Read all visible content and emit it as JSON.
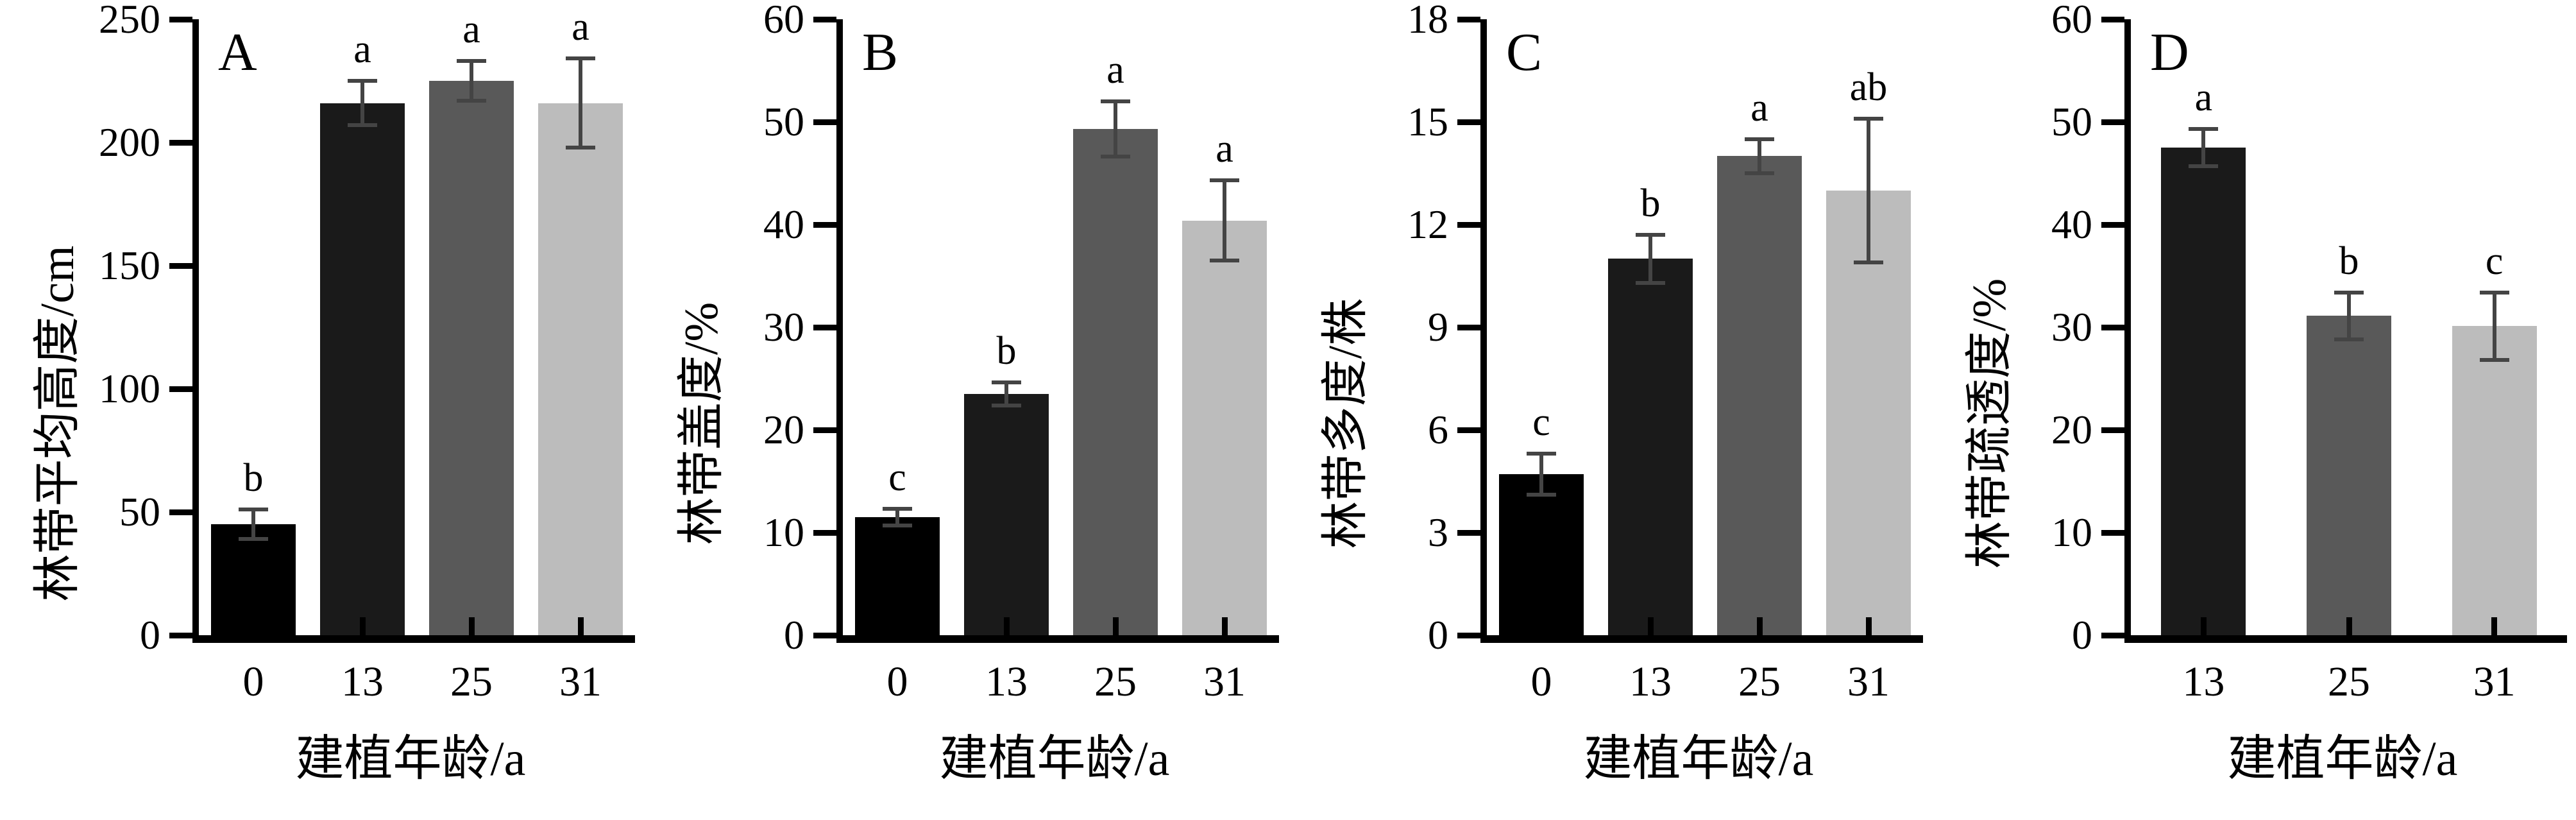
{
  "figure": {
    "background": "#ffffff",
    "axis_color": "#000000",
    "error_bar_color": "#444444"
  },
  "chart_data": [
    {
      "type": "bar",
      "panel_label": "A",
      "categories": [
        "0",
        "13",
        "25",
        "31"
      ],
      "values": [
        45,
        216,
        225,
        216
      ],
      "errors": [
        6,
        9,
        8,
        18
      ],
      "sig_letters": [
        "b",
        "a",
        "a",
        "a"
      ],
      "bar_colors": [
        "#000000",
        "#1a1a1a",
        "#595959",
        "#bcbcbc"
      ],
      "xlabel": "建植年龄/a",
      "ylabel": "林带平均高度/cm",
      "ylim": [
        0,
        250
      ],
      "yticks": [
        0,
        50,
        100,
        150,
        200,
        250
      ],
      "grid": false,
      "legend": "none"
    },
    {
      "type": "bar",
      "panel_label": "B",
      "categories": [
        "0",
        "13",
        "25",
        "31"
      ],
      "values": [
        11.5,
        23.5,
        49.3,
        40.4
      ],
      "errors": [
        0.8,
        1.1,
        2.7,
        3.9
      ],
      "sig_letters": [
        "c",
        "b",
        "a",
        "a"
      ],
      "bar_colors": [
        "#000000",
        "#1a1a1a",
        "#595959",
        "#bcbcbc"
      ],
      "xlabel": "建植年龄/a",
      "ylabel": "林带盖度/%",
      "ylim": [
        0,
        60
      ],
      "yticks": [
        0,
        10,
        20,
        30,
        40,
        50,
        60
      ],
      "grid": false,
      "legend": "none"
    },
    {
      "type": "bar",
      "panel_label": "C",
      "categories": [
        "0",
        "13",
        "25",
        "31"
      ],
      "values": [
        4.7,
        11,
        14,
        13
      ],
      "errors": [
        0.6,
        0.7,
        0.5,
        2.1
      ],
      "sig_letters": [
        "c",
        "b",
        "a",
        "ab"
      ],
      "bar_colors": [
        "#000000",
        "#1a1a1a",
        "#595959",
        "#bcbcbc"
      ],
      "xlabel": "建植年龄/a",
      "ylabel": "林带多度/株",
      "ylim": [
        0,
        18
      ],
      "yticks": [
        0,
        3,
        6,
        9,
        12,
        15,
        18
      ],
      "grid": false,
      "legend": "none"
    },
    {
      "type": "bar",
      "panel_label": "D",
      "categories": [
        "13",
        "25",
        "31"
      ],
      "values": [
        47.5,
        31.1,
        30.1
      ],
      "errors": [
        1.8,
        2.3,
        3.3
      ],
      "sig_letters": [
        "a",
        "b",
        "c"
      ],
      "bar_colors": [
        "#1a1a1a",
        "#595959",
        "#bcbcbc"
      ],
      "xlabel": "建植年龄/a",
      "ylabel": "林带疏透度/%",
      "ylim": [
        0,
        60
      ],
      "yticks": [
        0,
        10,
        20,
        30,
        40,
        50,
        60
      ],
      "grid": false,
      "legend": "none"
    }
  ]
}
